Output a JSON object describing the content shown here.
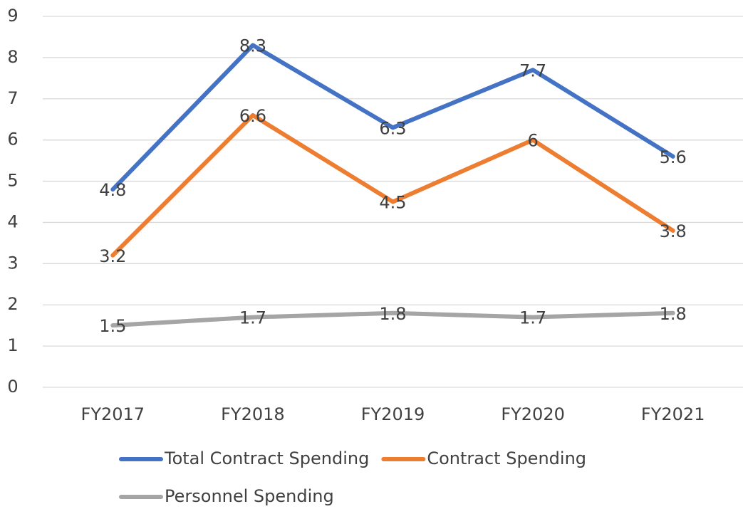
{
  "chart_data": {
    "type": "line",
    "categories": [
      "FY2017",
      "FY2018",
      "FY2019",
      "FY2020",
      "FY2021"
    ],
    "series": [
      {
        "name": "Total Contract Spending",
        "color": "#4472c4",
        "values": [
          4.8,
          8.3,
          6.3,
          7.7,
          5.6
        ]
      },
      {
        "name": "Contract Spending",
        "color": "#ed7d31",
        "values": [
          3.2,
          6.6,
          4.5,
          6,
          3.8
        ]
      },
      {
        "name": "Personnel Spending",
        "color": "#a5a5a5",
        "values": [
          1.5,
          1.7,
          1.8,
          1.7,
          1.8
        ]
      }
    ],
    "ylim": [
      0,
      9
    ],
    "yticks": [
      0,
      1,
      2,
      3,
      4,
      5,
      6,
      7,
      8,
      9
    ],
    "grid": true,
    "legend": "bottom",
    "data_labels": true
  }
}
